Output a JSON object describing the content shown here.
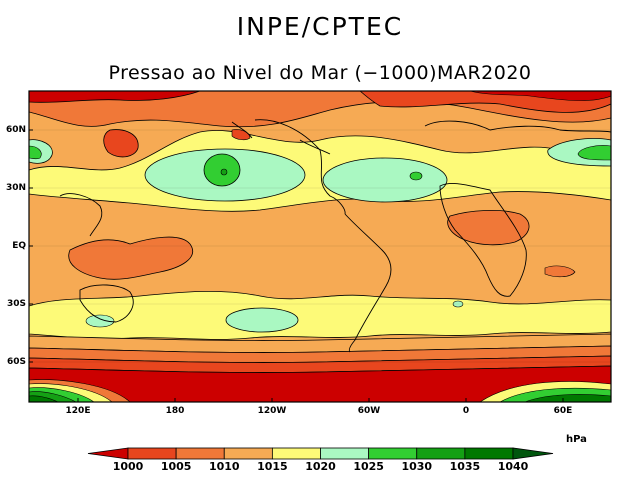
{
  "header": {
    "institution": "INPE/CPTEC",
    "product_title": "Pressao ao Nivel do Mar (−1000)MAR2020"
  },
  "map": {
    "latitude_labels": [
      "60N",
      "30N",
      "EQ",
      "30S",
      "60S"
    ],
    "longitude_labels": [
      "120E",
      "180",
      "120W",
      "60W",
      "0",
      "60E"
    ]
  },
  "legend": {
    "unit": "hPa",
    "levels": [
      "1000",
      "1005",
      "1010",
      "1015",
      "1020",
      "1025",
      "1030",
      "1035",
      "1040"
    ],
    "colors": [
      "#cc0000",
      "#e8461e",
      "#f07838",
      "#f6aa54",
      "#fdfa78",
      "#aaf8c2",
      "#32ce32",
      "#14a014",
      "#007800",
      "#00560d"
    ]
  }
}
